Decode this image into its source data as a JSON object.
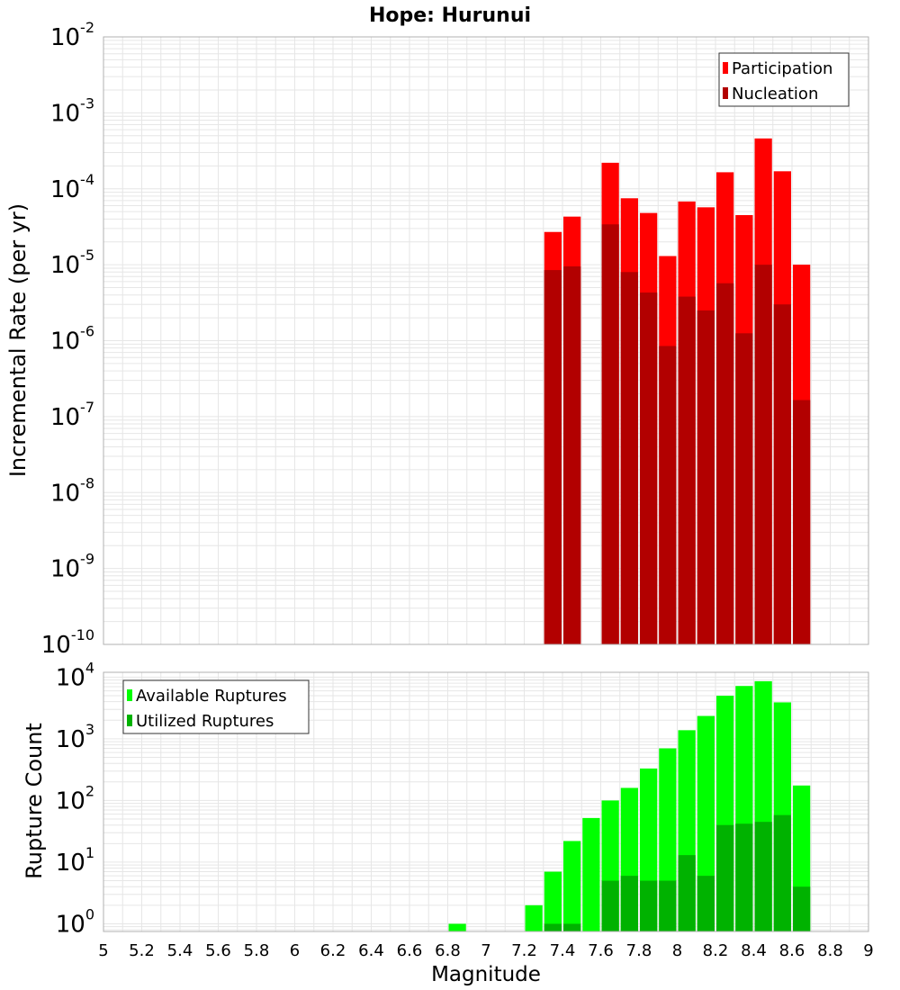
{
  "chart_data": [
    {
      "type": "bar",
      "title": "Hope: Hurunui",
      "ylabel": "Incremental Rate (per yr)",
      "xlabel": "",
      "xlim": [
        5,
        9
      ],
      "ylim": [
        1e-10,
        0.01
      ],
      "yscale": "log",
      "grid": true,
      "legend_position": "top-right",
      "bin_width": 0.1,
      "yticks": [
        {
          "base": "10",
          "exp": "-10"
        },
        {
          "base": "10",
          "exp": "-9"
        },
        {
          "base": "10",
          "exp": "-8"
        },
        {
          "base": "10",
          "exp": "-7"
        },
        {
          "base": "10",
          "exp": "-6"
        },
        {
          "base": "10",
          "exp": "-5"
        },
        {
          "base": "10",
          "exp": "-4"
        },
        {
          "base": "10",
          "exp": "-3"
        },
        {
          "base": "10",
          "exp": "-2"
        }
      ],
      "x": [
        7.35,
        7.45,
        7.55,
        7.65,
        7.75,
        7.85,
        7.95,
        8.05,
        8.15,
        8.25,
        8.35,
        8.45,
        8.55,
        8.65
      ],
      "series": [
        {
          "name": "Participation",
          "color": "#ff0000",
          "values": [
            2.7e-05,
            4.3e-05,
            null,
            0.00022,
            7.5e-05,
            4.8e-05,
            1.3e-05,
            6.8e-05,
            5.7e-05,
            0.000165,
            4.5e-05,
            0.00046,
            0.00017,
            1e-05
          ]
        },
        {
          "name": "Nucleation",
          "color": "#b20000",
          "values": [
            8.5e-06,
            9.5e-06,
            null,
            3.4e-05,
            8e-06,
            4.3e-06,
            8.5e-07,
            3.8e-06,
            2.5e-06,
            5.7e-06,
            1.25e-06,
            1e-05,
            3e-06,
            1.65e-07
          ]
        }
      ]
    },
    {
      "type": "bar",
      "title": "",
      "ylabel": "Rupture Count",
      "xlabel": "Magnitude",
      "xlim": [
        5,
        9
      ],
      "ylim": [
        0.75,
        12000
      ],
      "yscale": "log",
      "grid": true,
      "legend_position": "top-left",
      "bin_width": 0.1,
      "yticks": [
        {
          "base": "10",
          "exp": "0"
        },
        {
          "base": "10",
          "exp": "1"
        },
        {
          "base": "10",
          "exp": "2"
        },
        {
          "base": "10",
          "exp": "3"
        },
        {
          "base": "10",
          "exp": "4"
        }
      ],
      "xtick_labels": [
        "5",
        "5.2",
        "5.4",
        "5.6",
        "5.8",
        "6",
        "6.2",
        "6.4",
        "6.6",
        "6.8",
        "7",
        "7.2",
        "7.4",
        "7.6",
        "7.8",
        "8",
        "8.2",
        "8.4",
        "8.6",
        "8.8",
        "9"
      ],
      "x": [
        6.85,
        7.25,
        7.35,
        7.45,
        7.55,
        7.65,
        7.75,
        7.85,
        7.95,
        8.05,
        8.15,
        8.25,
        8.35,
        8.45,
        8.55,
        8.65
      ],
      "series": [
        {
          "name": "Available Ruptures",
          "color": "#00ff00",
          "values": [
            1,
            2,
            7,
            22,
            52,
            100,
            160,
            330,
            700,
            1380,
            2350,
            5000,
            7200,
            8600,
            3900,
            175
          ]
        },
        {
          "name": "Utilized Ruptures",
          "color": "#00b200",
          "values": [
            null,
            null,
            1,
            1,
            null,
            5,
            6,
            5,
            5,
            13,
            6,
            40,
            42,
            45,
            58,
            4
          ]
        }
      ]
    }
  ]
}
